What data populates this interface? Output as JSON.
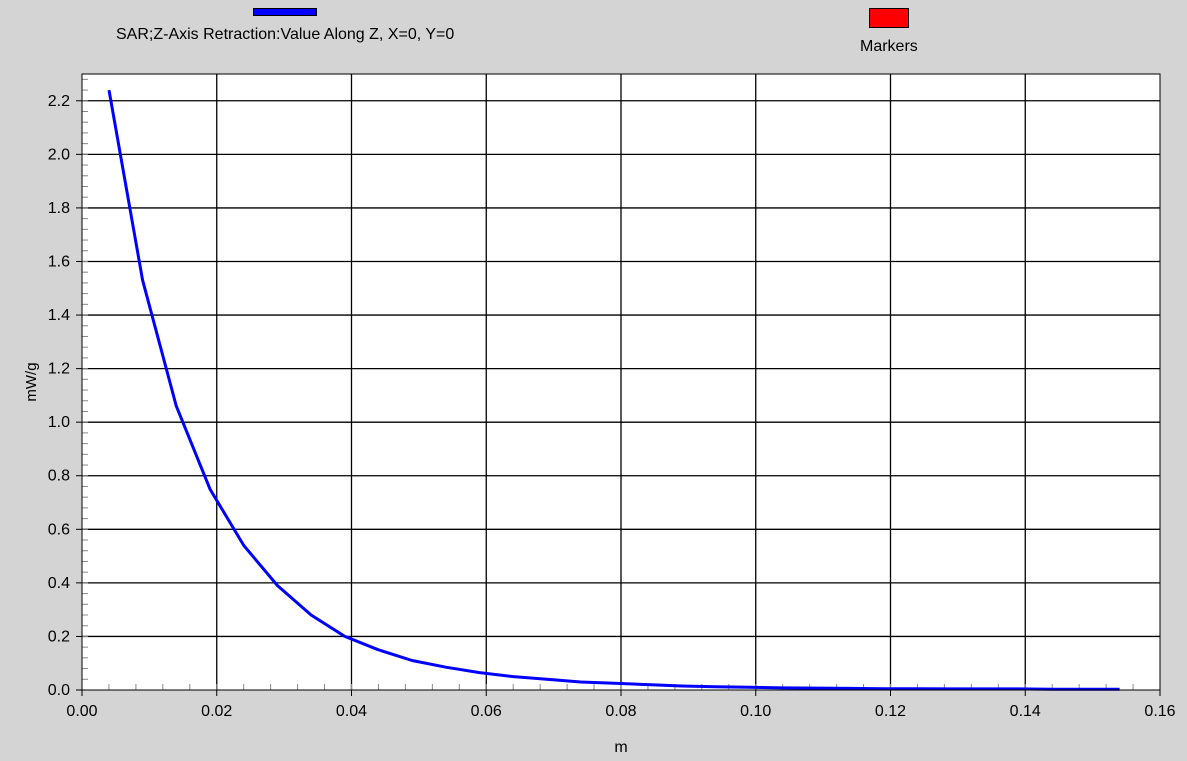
{
  "chart_data": {
    "type": "line",
    "title": "",
    "xlabel": "m",
    "ylabel": "mW/g",
    "xlim": [
      0.0,
      0.16
    ],
    "ylim": [
      0.0,
      2.3
    ],
    "x_ticks": [
      0.0,
      0.02,
      0.04,
      0.06,
      0.08,
      0.1,
      0.12,
      0.14,
      0.16
    ],
    "x_tick_labels": [
      "0.00",
      "0.02",
      "0.04",
      "0.06",
      "0.08",
      "0.10",
      "0.12",
      "0.14",
      "0.16"
    ],
    "y_ticks": [
      0.0,
      0.2,
      0.4,
      0.6,
      0.8,
      1.0,
      1.2,
      1.4,
      1.6,
      1.8,
      2.0,
      2.2
    ],
    "y_tick_labels": [
      "0.0",
      "0.2",
      "0.4",
      "0.6",
      "0.8",
      "1.0",
      "1.2",
      "1.4",
      "1.6",
      "1.8",
      "2.0",
      "2.2"
    ],
    "grid": true,
    "legend_position": "top",
    "series": [
      {
        "name": "SAR;Z-Axis Retraction:Value Along Z, X=0, Y=0",
        "color": "#0000ff",
        "x": [
          0.004,
          0.009,
          0.014,
          0.019,
          0.024,
          0.029,
          0.034,
          0.039,
          0.044,
          0.049,
          0.054,
          0.059,
          0.064,
          0.069,
          0.074,
          0.079,
          0.084,
          0.089,
          0.094,
          0.099,
          0.104,
          0.109,
          0.114,
          0.119,
          0.124,
          0.129,
          0.134,
          0.139,
          0.144,
          0.149,
          0.154
        ],
        "y": [
          2.24,
          1.53,
          1.06,
          0.75,
          0.54,
          0.39,
          0.28,
          0.2,
          0.15,
          0.11,
          0.085,
          0.065,
          0.05,
          0.04,
          0.03,
          0.025,
          0.02,
          0.015,
          0.012,
          0.01,
          0.008,
          0.007,
          0.006,
          0.005,
          0.005,
          0.004,
          0.004,
          0.004,
          0.003,
          0.003,
          0.003
        ]
      }
    ],
    "legend": [
      {
        "label": "SAR;Z-Axis Retraction:Value Along Z, X=0, Y=0",
        "color": "#0000ff",
        "swatch": "line"
      },
      {
        "label": "Markers",
        "color": "#ff0000",
        "swatch": "box"
      }
    ]
  }
}
